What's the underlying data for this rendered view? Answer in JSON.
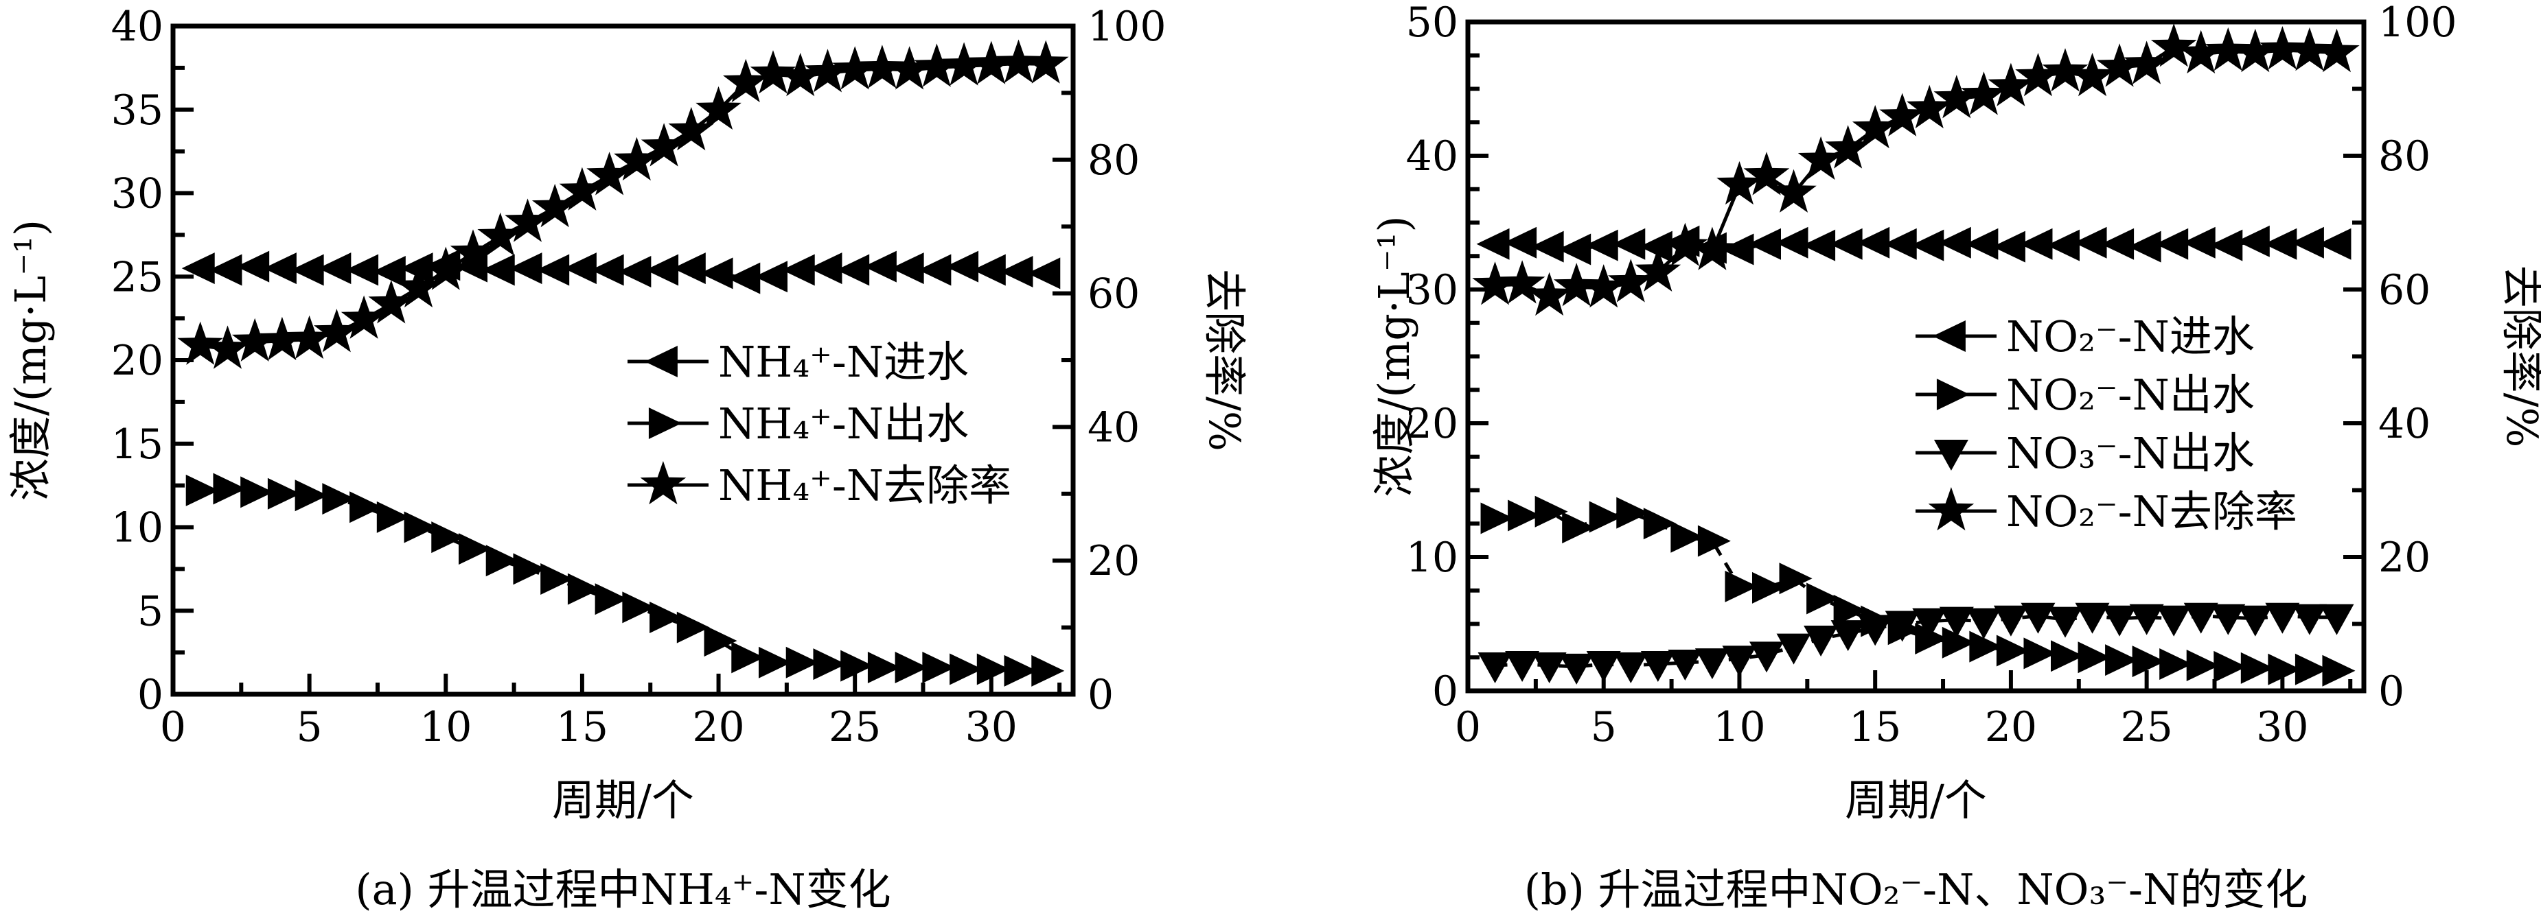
{
  "figure": {
    "background": "#ffffff",
    "ink_color": "#000000"
  },
  "chart_data": [
    {
      "id": "a",
      "type": "line",
      "caption": "(a) 升温过程中NH₄⁺-N变化",
      "xlabel": "周期/个",
      "ylabel_left": "浓度/(mg·L⁻¹)",
      "ylabel_right": "去除率/%",
      "xlim": [
        0,
        33
      ],
      "x_major": 5,
      "x_minor": 2.5,
      "x_tick_labels": [
        0,
        5,
        10,
        15,
        20,
        25,
        30
      ],
      "ylim_left": [
        0,
        40
      ],
      "y_left_major": 5,
      "y_left_minor": 2.5,
      "y_left_tick_labels": [
        0,
        5,
        10,
        15,
        20,
        25,
        30,
        35,
        40
      ],
      "ylim_right": [
        0,
        100
      ],
      "y_right_major": 20,
      "y_right_minor": 10,
      "y_right_tick_labels": [
        0,
        20,
        40,
        60,
        80,
        100
      ],
      "grid": false,
      "legend_position": "inside-right-middle",
      "x": [
        1,
        2,
        3,
        4,
        5,
        6,
        7,
        8,
        9,
        10,
        11,
        12,
        13,
        14,
        15,
        16,
        17,
        18,
        19,
        20,
        21,
        22,
        23,
        24,
        25,
        26,
        27,
        28,
        29,
        30,
        31,
        32
      ],
      "series": [
        {
          "name": "NH₄⁺-N进水",
          "slug": "nh4n-inflow",
          "axis": "left",
          "marker": "triangle-left",
          "line": "dashed",
          "values": [
            25.5,
            25.4,
            25.6,
            25.5,
            25.4,
            25.5,
            25.4,
            25.3,
            25.5,
            25.7,
            25.6,
            25.4,
            25.5,
            25.4,
            25.5,
            25.4,
            25.3,
            25.4,
            25.5,
            25.2,
            24.9,
            25.0,
            25.4,
            25.5,
            25.4,
            25.6,
            25.5,
            25.4,
            25.6,
            25.4,
            25.3,
            25.2
          ]
        },
        {
          "name": "NH₄⁺-N出水",
          "slug": "nh4n-outflow",
          "axis": "left",
          "marker": "triangle-right",
          "line": "dashed",
          "values": [
            12.2,
            12.3,
            12.1,
            12.0,
            11.9,
            11.7,
            11.2,
            10.6,
            10.0,
            9.4,
            8.7,
            8.0,
            7.5,
            6.9,
            6.3,
            5.7,
            5.2,
            4.6,
            4.0,
            3.2,
            2.2,
            1.9,
            1.9,
            1.8,
            1.7,
            1.6,
            1.6,
            1.6,
            1.5,
            1.5,
            1.4,
            1.4
          ]
        },
        {
          "name": "NH₄⁺-N去除率",
          "slug": "nh4n-removal",
          "axis": "right",
          "marker": "star",
          "line": "solid",
          "values": [
            52.2,
            51.6,
            52.7,
            52.9,
            53.1,
            54.1,
            56.1,
            58.4,
            60.8,
            63.4,
            66.0,
            68.5,
            70.6,
            72.8,
            75.3,
            77.6,
            79.8,
            81.9,
            84.3,
            87.4,
            91.5,
            92.8,
            92.4,
            93.0,
            93.4,
            93.6,
            93.4,
            93.8,
            94.0,
            94.2,
            94.4,
            94.3
          ]
        }
      ]
    },
    {
      "id": "b",
      "type": "line",
      "caption": "(b) 升温过程中NO₂⁻-N、NO₃⁻-N的变化",
      "xlabel": "周期/个",
      "ylabel_left": "浓度/(mg·L⁻¹)",
      "ylabel_right": "去除率/%",
      "xlim": [
        0,
        33
      ],
      "x_major": 5,
      "x_minor": 2.5,
      "x_tick_labels": [
        0,
        5,
        10,
        15,
        20,
        25,
        30
      ],
      "ylim_left": [
        0,
        50
      ],
      "y_left_major": 10,
      "y_left_minor": 2.5,
      "y_left_tick_labels": [
        0,
        10,
        20,
        30,
        40,
        50
      ],
      "ylim_right": [
        0,
        100
      ],
      "y_right_major": 20,
      "y_right_minor": 10,
      "y_right_tick_labels": [
        0,
        20,
        40,
        60,
        80,
        100
      ],
      "grid": false,
      "legend_position": "inside-right-middle",
      "x": [
        1,
        2,
        3,
        4,
        5,
        6,
        7,
        8,
        9,
        10,
        11,
        12,
        13,
        14,
        15,
        16,
        17,
        18,
        19,
        20,
        21,
        22,
        23,
        24,
        25,
        26,
        27,
        28,
        29,
        30,
        31,
        32
      ],
      "series": [
        {
          "name": "NO₂⁻-N进水",
          "slug": "no2n-inflow",
          "axis": "left",
          "marker": "triangle-left",
          "line": "dashed",
          "values": [
            33.4,
            33.5,
            33.2,
            33.0,
            33.3,
            33.4,
            33.2,
            33.6,
            33.1,
            33.0,
            33.4,
            33.5,
            33.3,
            33.4,
            33.5,
            33.4,
            33.3,
            33.5,
            33.4,
            33.2,
            33.4,
            33.3,
            33.5,
            33.4,
            33.2,
            33.4,
            33.5,
            33.3,
            33.6,
            33.4,
            33.5,
            33.4
          ]
        },
        {
          "name": "NO₂⁻-N出水",
          "slug": "no2n-outflow",
          "axis": "left",
          "marker": "triangle-right",
          "line": "dashed",
          "values": [
            12.9,
            13.1,
            13.4,
            12.2,
            13.0,
            13.3,
            12.5,
            11.5,
            11.2,
            7.8,
            7.7,
            8.4,
            6.9,
            6.0,
            5.2,
            4.6,
            3.9,
            3.6,
            3.3,
            3.0,
            2.8,
            2.6,
            2.5,
            2.3,
            2.2,
            2.0,
            1.9,
            1.8,
            1.7,
            1.6,
            1.6,
            1.5
          ]
        },
        {
          "name": "NO₃⁻-N出水",
          "slug": "no3n-outflow",
          "axis": "left",
          "marker": "triangle-down",
          "line": "dashed",
          "values": [
            1.9,
            2.0,
            1.9,
            1.8,
            2.0,
            1.9,
            2.0,
            2.1,
            2.2,
            2.4,
            2.7,
            3.3,
            3.9,
            4.3,
            4.7,
            5.0,
            5.2,
            5.3,
            5.2,
            5.4,
            5.6,
            5.3,
            5.6,
            5.4,
            5.5,
            5.4,
            5.6,
            5.5,
            5.4,
            5.6,
            5.5,
            5.5
          ]
        },
        {
          "name": "NO₂⁻-N去除率",
          "slug": "no2n-removal",
          "axis": "right",
          "marker": "star",
          "line": "solid",
          "values": [
            60.6,
            60.8,
            59.0,
            60.4,
            60.2,
            61.0,
            62.6,
            66.4,
            65.8,
            75.6,
            77.0,
            74.4,
            79.3,
            81.0,
            84.0,
            85.8,
            87.0,
            88.5,
            89.0,
            90.3,
            91.8,
            92.5,
            91.8,
            93.2,
            93.6,
            96.2,
            95.2,
            95.6,
            95.4,
            95.8,
            95.6,
            95.4
          ]
        }
      ]
    }
  ]
}
